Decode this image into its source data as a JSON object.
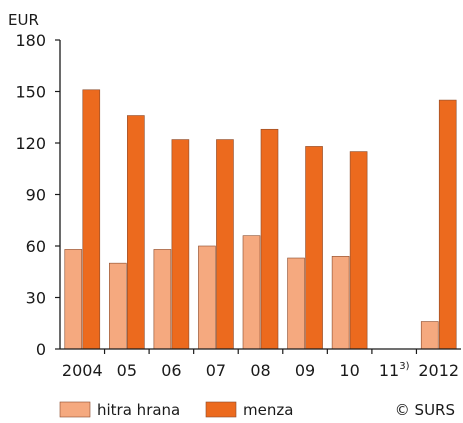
{
  "chart_data": {
    "type": "bar",
    "unit": "EUR",
    "categories": [
      "2004",
      "05",
      "06",
      "07",
      "08",
      "09",
      "10",
      "11",
      "2012"
    ],
    "category_superscripts": [
      "",
      "",
      "",
      "",
      "",
      "",
      "",
      "3)",
      ""
    ],
    "series": [
      {
        "name": "hitra hrana",
        "color": "#f5a97f",
        "values": [
          58,
          50,
          58,
          60,
          66,
          53,
          54,
          null,
          16
        ]
      },
      {
        "name": "menza",
        "color": "#ec6a1e",
        "values": [
          151,
          136,
          122,
          122,
          128,
          118,
          115,
          null,
          145
        ]
      }
    ],
    "ylim": [
      0,
      180
    ],
    "yticks": [
      0,
      30,
      60,
      90,
      120,
      150,
      180
    ],
    "legend_position": "bottom",
    "bar_outline_color": "#8a4a2a",
    "grid": false
  },
  "credit": "© SURS"
}
